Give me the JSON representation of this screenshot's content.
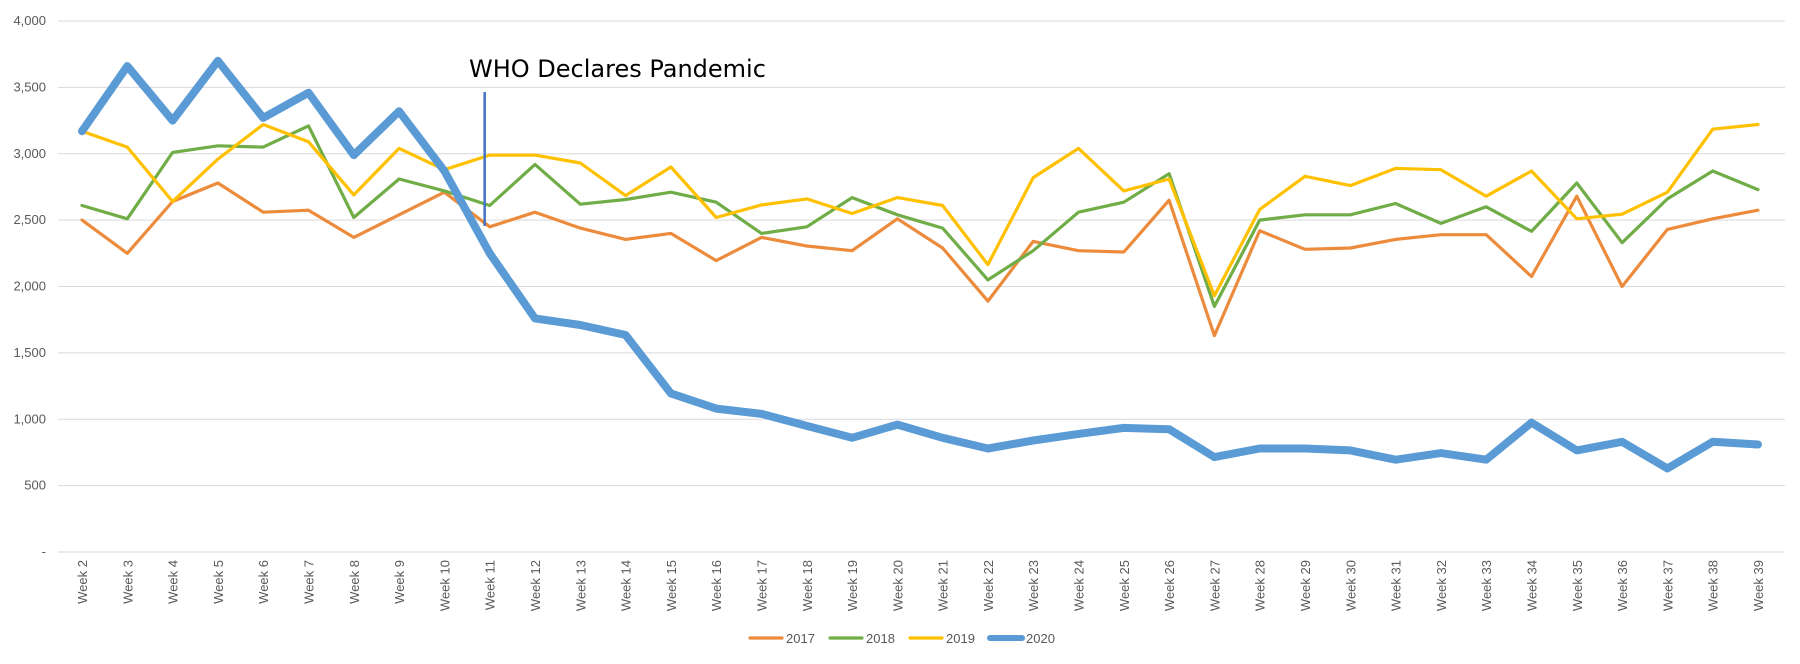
{
  "chart_data": {
    "type": "line",
    "title": "",
    "xlabel": "",
    "ylabel": "",
    "ylim": [
      0,
      4000
    ],
    "y_ticks": [
      "-",
      "500",
      "1,000",
      "1,500",
      "2,000",
      "2,500",
      "3,000",
      "3,500",
      "4,000"
    ],
    "grid": "horizontal",
    "legend_position": "bottom",
    "categories": [
      "Week 2",
      "Week 3",
      "Week 4",
      "Week 5",
      "Week 6",
      "Week 7",
      "Week 8",
      "Week 9",
      "Week 10",
      "Week 11",
      "Week 12",
      "Week 13",
      "Week 14",
      "Week 15",
      "Week 16",
      "Week 17",
      "Week 18",
      "Week 19",
      "Week 20",
      "Week 21",
      "Week 22",
      "Week 23",
      "Week 24",
      "Week 25",
      "Week 26",
      "Week 27",
      "Week 28",
      "Week 29",
      "Week 30",
      "Week 31",
      "Week 32",
      "Week 33",
      "Week 34",
      "Week 35",
      "Week 36",
      "Week 37",
      "Week 38",
      "Week 39"
    ],
    "series": [
      {
        "name": "2017",
        "color": "#ED8B3C",
        "values": [
          2500,
          2250,
          2640,
          2780,
          2560,
          2575,
          2370,
          2540,
          2710,
          2450,
          2560,
          2440,
          2355,
          2400,
          2195,
          2370,
          2305,
          2270,
          2510,
          2290,
          1890,
          2340,
          2270,
          2260,
          2650,
          1630,
          2420,
          2280,
          2290,
          2355,
          2390,
          2390,
          2075,
          2680,
          2000,
          2430,
          2510,
          2575
        ]
      },
      {
        "name": "2018",
        "color": "#70AD47",
        "values": [
          2610,
          2510,
          3010,
          3060,
          3050,
          3210,
          2520,
          2810,
          2720,
          2610,
          2920,
          2620,
          2655,
          2710,
          2635,
          2400,
          2450,
          2670,
          2540,
          2440,
          2050,
          2270,
          2560,
          2635,
          2850,
          1850,
          2500,
          2540,
          2540,
          2625,
          2475,
          2600,
          2415,
          2780,
          2330,
          2660,
          2870,
          2730
        ]
      },
      {
        "name": "2019",
        "color": "#FFC000",
        "values": [
          3170,
          3050,
          2640,
          2960,
          3220,
          3090,
          2690,
          3040,
          2880,
          2990,
          2990,
          2930,
          2685,
          2900,
          2520,
          2615,
          2660,
          2550,
          2670,
          2610,
          2165,
          2820,
          3040,
          2720,
          2810,
          1930,
          2580,
          2830,
          2760,
          2890,
          2880,
          2680,
          2870,
          2510,
          2545,
          2710,
          3185,
          3220
        ]
      },
      {
        "name": "2020",
        "color": "#5B9BD5",
        "values": [
          3170,
          3660,
          3250,
          3700,
          3270,
          3460,
          2990,
          3320,
          2870,
          2250,
          1760,
          1710,
          1635,
          1195,
          1080,
          1040,
          950,
          860,
          960,
          860,
          780,
          840,
          890,
          935,
          925,
          715,
          780,
          780,
          765,
          695,
          745,
          695,
          975,
          765,
          830,
          630,
          830,
          810
        ]
      }
    ],
    "annotations": [
      {
        "text": "WHO Declares Pandemic",
        "at_category": "Week 11"
      }
    ]
  }
}
